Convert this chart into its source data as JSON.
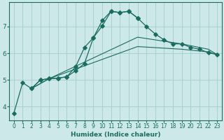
{
  "xlabel": "Humidex (Indice chaleur)",
  "bg_color": "#cce8e8",
  "grid_color": "#aad0d0",
  "line_color": "#1a6b60",
  "xlim": [
    -0.5,
    23.5
  ],
  "ylim": [
    3.5,
    7.9
  ],
  "yticks": [
    4,
    5,
    6,
    7
  ],
  "xticks": [
    0,
    1,
    2,
    3,
    4,
    5,
    6,
    7,
    8,
    9,
    10,
    11,
    12,
    13,
    14,
    15,
    16,
    17,
    18,
    19,
    20,
    21,
    22,
    23
  ],
  "curve1_x": [
    0,
    1,
    2,
    3,
    4,
    5,
    6,
    7,
    8,
    9,
    10,
    11,
    12,
    13,
    14
  ],
  "curve1_y": [
    3.75,
    4.9,
    4.68,
    5.0,
    5.05,
    5.07,
    5.12,
    5.5,
    6.22,
    6.58,
    7.22,
    7.57,
    7.52,
    7.57,
    7.32
  ],
  "curve2_x": [
    2,
    3,
    4,
    5,
    6,
    7,
    8,
    9,
    10,
    11,
    12,
    13,
    14,
    15,
    16,
    17,
    18,
    19,
    20,
    21,
    22,
    23
  ],
  "curve2_y": [
    4.68,
    5.0,
    5.05,
    5.07,
    5.12,
    5.35,
    5.62,
    6.58,
    7.02,
    7.57,
    7.52,
    7.57,
    7.32,
    7.0,
    6.72,
    6.5,
    6.35,
    6.35,
    6.22,
    6.15,
    6.02,
    5.95
  ],
  "curve3_x": [
    2,
    4,
    14,
    19,
    22,
    23
  ],
  "curve3_y": [
    4.68,
    5.05,
    6.6,
    6.35,
    6.15,
    5.95
  ],
  "curve4_x": [
    2,
    4,
    14,
    19,
    22,
    23
  ],
  "curve4_y": [
    4.68,
    5.05,
    6.25,
    6.15,
    6.05,
    5.95
  ]
}
